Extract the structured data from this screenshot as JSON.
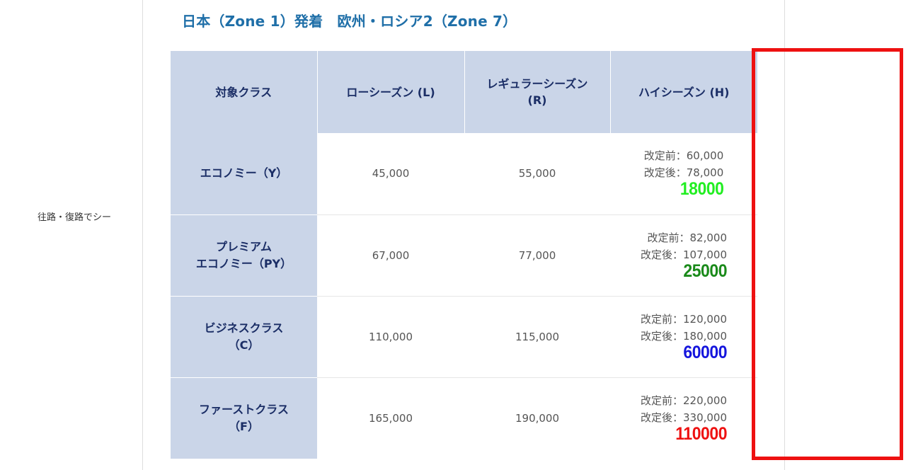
{
  "side_text": "往路・復路でシー",
  "heading": "日本（Zone 1）発着　欧州・ロシア2（Zone 7）",
  "table": {
    "headers": [
      "対象クラス",
      "ローシーズン (L)",
      "レギュラーシーズン\n(R)",
      "ハイシーズン (H)"
    ],
    "rows": [
      {
        "class_line1": "エコノミー（Y）",
        "class_line2": "",
        "low": "45,000",
        "regular": "55,000",
        "high_before": "改定前：60,000",
        "high_after": "改定後：78,000",
        "diff": "18000",
        "diff_color": "#22ee22"
      },
      {
        "class_line1": "プレミアム",
        "class_line2": "エコノミー（PY）",
        "low": "67,000",
        "regular": "77,000",
        "high_before": "改定前：82,000",
        "high_after": "改定後：107,000",
        "diff": "25000",
        "diff_color": "#1a8a1a"
      },
      {
        "class_line1": "ビジネスクラス",
        "class_line2": "（C）",
        "low": "110,000",
        "regular": "115,000",
        "high_before": "改定前：120,000",
        "high_after": "改定後：180,000",
        "diff": "60000",
        "diff_color": "#1515dd"
      },
      {
        "class_line1": "ファーストクラス",
        "class_line2": "（F）",
        "low": "165,000",
        "regular": "190,000",
        "high_before": "改定前：220,000",
        "high_after": "改定後：330,000",
        "diff": "110000",
        "diff_color": "#ee1111"
      }
    ]
  },
  "highlight_color": "#ee1111"
}
